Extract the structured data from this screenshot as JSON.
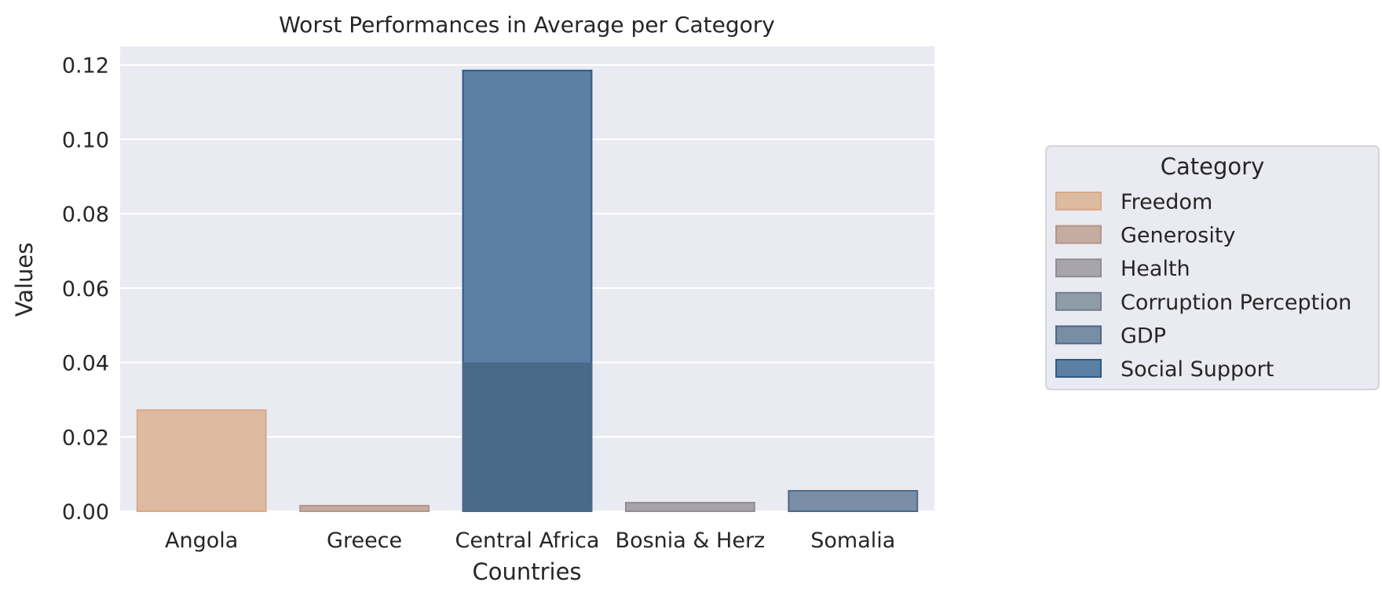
{
  "chart_data": {
    "type": "bar",
    "title": "Worst Performances in Average per Category",
    "xlabel": "Countries",
    "ylabel": "Values",
    "ylim": [
      0,
      0.125
    ],
    "yticks": [
      0.0,
      0.02,
      0.04,
      0.06,
      0.08,
      0.1,
      0.12
    ],
    "ytick_labels": [
      "0.00",
      "0.02",
      "0.04",
      "0.06",
      "0.08",
      "0.10",
      "0.12"
    ],
    "categories": [
      "Angola",
      "Greece",
      "Central Africa",
      "Bosnia & Herz",
      "Somalia"
    ],
    "grid": true,
    "legend": {
      "title": "Category",
      "placement": "right"
    },
    "series": [
      {
        "name": "Freedom",
        "color": "#dcbba0",
        "edge": "#d9a98a",
        "values": [
          0.0272,
          null,
          null,
          null,
          null
        ]
      },
      {
        "name": "Generosity",
        "color": "#c4aca3",
        "edge": "#b3978c",
        "values": [
          null,
          0.0015,
          null,
          null,
          null
        ]
      },
      {
        "name": "Health",
        "color": "#a7a5a9",
        "edge": "#8f8d92",
        "values": [
          null,
          null,
          null,
          0.0023,
          null
        ]
      },
      {
        "name": "Corruption Perception",
        "color": "#8e9ca8",
        "edge": "#6d7f8f",
        "values": [
          null,
          null,
          0.0,
          null,
          null
        ]
      },
      {
        "name": "GDP",
        "color": "#798da5",
        "edge": "#4d6888",
        "values": [
          null,
          null,
          0.0398,
          null,
          0.0055
        ]
      },
      {
        "name": "Social Support",
        "color": "#5b80a3",
        "edge": "#2f5b84",
        "values": [
          null,
          null,
          0.1185,
          null,
          null
        ]
      }
    ],
    "overlap_colors": {
      "GDP+Social Support": "#496a89"
    }
  }
}
